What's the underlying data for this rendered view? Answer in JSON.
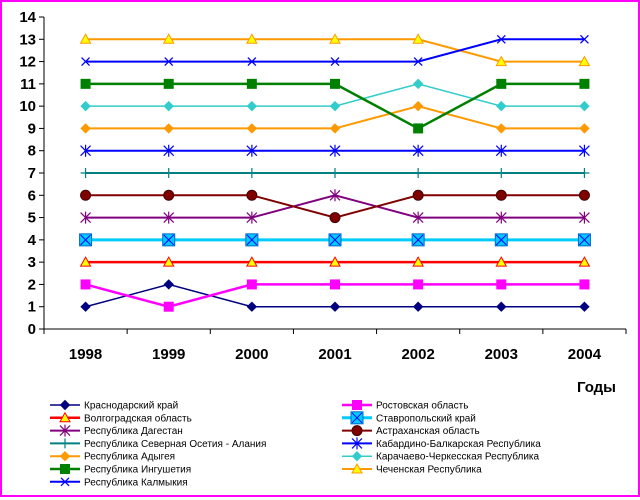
{
  "chart_data": {
    "type": "line",
    "title": "",
    "xlabel": "Годы",
    "ylabel": "",
    "x": [
      "1998",
      "1999",
      "2000",
      "2001",
      "2002",
      "2003",
      "2004"
    ],
    "ylim": [
      0,
      14
    ],
    "yticks": [
      0,
      1,
      2,
      3,
      4,
      5,
      6,
      7,
      8,
      9,
      10,
      11,
      12,
      13,
      14
    ],
    "grid": false,
    "legend_position": "bottom",
    "series": [
      {
        "name": "Краснодарский край",
        "values": [
          1,
          2,
          1,
          1,
          1,
          1,
          1
        ],
        "color": "#000080",
        "marker": "diamond"
      },
      {
        "name": "Ростовская область",
        "values": [
          2,
          1,
          2,
          2,
          2,
          2,
          2
        ],
        "color": "#ff00ff",
        "marker": "square"
      },
      {
        "name": "Волгоградская область",
        "values": [
          3,
          3,
          3,
          3,
          3,
          3,
          3
        ],
        "color": "#ff0000",
        "marker": "triangle"
      },
      {
        "name": "Ставропольский край",
        "values": [
          4,
          4,
          4,
          4,
          4,
          4,
          4
        ],
        "color": "#00ccff",
        "marker": "xsquare"
      },
      {
        "name": "Республика Дагестан",
        "values": [
          5,
          5,
          5,
          6,
          5,
          5,
          5
        ],
        "color": "#800080",
        "marker": "asterisk"
      },
      {
        "name": "Астраханская область",
        "values": [
          6,
          6,
          6,
          5,
          6,
          6,
          6
        ],
        "color": "#800000",
        "marker": "circle"
      },
      {
        "name": "Республика Северная Осетия - Алания",
        "values": [
          7,
          7,
          7,
          7,
          7,
          7,
          7
        ],
        "color": "#008080",
        "marker": "plus"
      },
      {
        "name": "Кабардино-Балкарская Республика",
        "values": [
          8,
          8,
          8,
          8,
          8,
          8,
          8
        ],
        "color": "#0000ff",
        "marker": "asterisk"
      },
      {
        "name": "Республика Адыгея",
        "values": [
          9,
          9,
          9,
          9,
          10,
          9,
          9
        ],
        "color": "#ff9900",
        "marker": "diamond"
      },
      {
        "name": "Карачаево-Черкесская Республика",
        "values": [
          10,
          10,
          10,
          10,
          11,
          10,
          10
        ],
        "color": "#33cccc",
        "marker": "diamond"
      },
      {
        "name": "Республика Ингушетия",
        "values": [
          11,
          11,
          11,
          11,
          9,
          11,
          11
        ],
        "color": "#008000",
        "marker": "square"
      },
      {
        "name": "Чеченская Республика",
        "values": [
          13,
          13,
          13,
          13,
          13,
          12,
          12
        ],
        "color": "#ff9900",
        "marker": "triangle"
      },
      {
        "name": "Республика Калмыкия",
        "values": [
          12,
          12,
          12,
          12,
          12,
          13,
          13
        ],
        "color": "#0000ff",
        "marker": "x"
      }
    ]
  }
}
